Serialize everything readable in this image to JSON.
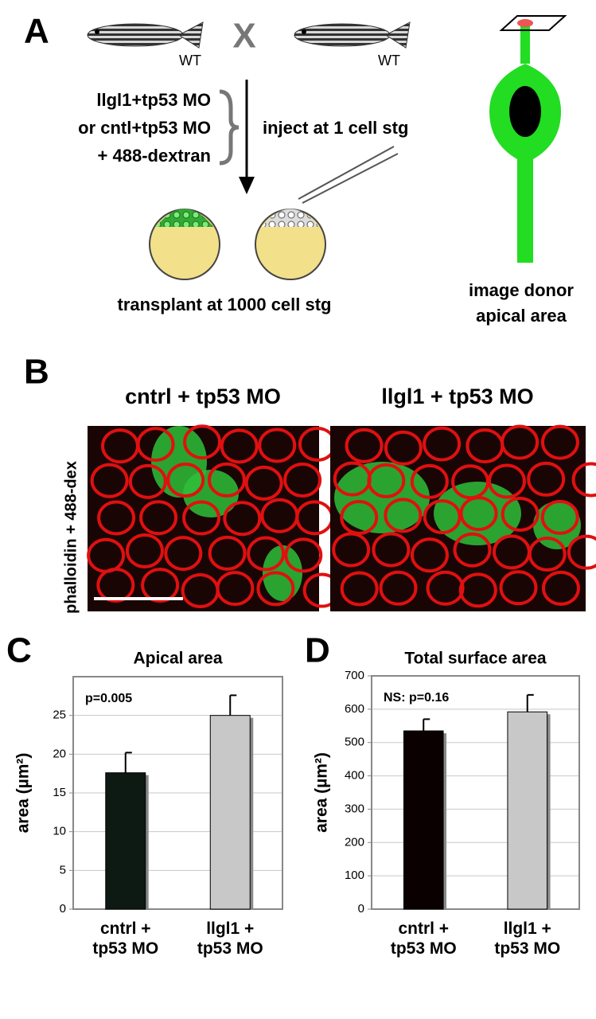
{
  "panel_a": {
    "letter": "A",
    "cross": "X",
    "parent_1": "WT",
    "parent_2": "WT",
    "mo_lines": [
      "llgl1+tp53 MO",
      "or cntl+tp53 MO",
      "+ 488-dextran"
    ],
    "inject": "inject at 1 cell stg",
    "transplant": "transplant at 1000 cell stg",
    "image_lines": [
      "image donor",
      "apical area"
    ]
  },
  "panel_b": {
    "letter": "B",
    "left_title": "cntrl + tp53 MO",
    "right_title": "llgl1 + tp53 MO",
    "side_label": "phalloidin + 488-dex"
  },
  "chart_data": [
    {
      "type": "bar",
      "letter": "C",
      "title": "Apical area",
      "ylabel": "area (µm²)",
      "annotation": "p=0.005",
      "categories": [
        "cntrl + tp53 MO",
        "llgl1 + tp53 MO"
      ],
      "values": [
        17.6,
        25.0
      ],
      "errors": [
        2.6,
        2.6
      ],
      "colors": [
        "#0d1a14",
        "#c8c8c8"
      ],
      "ylim": [
        0,
        30
      ],
      "yticks": [
        0,
        5,
        10,
        15,
        20,
        25
      ],
      "grid": true
    },
    {
      "type": "bar",
      "letter": "D",
      "title": "Total surface area",
      "ylabel": "area (µm²)",
      "annotation": "NS: p=0.16",
      "categories": [
        "cntrl + tp53 MO",
        "llgl1 + tp53 MO"
      ],
      "values": [
        535,
        592
      ],
      "errors": [
        35,
        51
      ],
      "colors": [
        "#0a0000",
        "#c8c8c8"
      ],
      "ylim": [
        0,
        700
      ],
      "yticks": [
        0,
        100,
        200,
        300,
        400,
        500,
        600,
        700
      ],
      "grid": true
    }
  ]
}
